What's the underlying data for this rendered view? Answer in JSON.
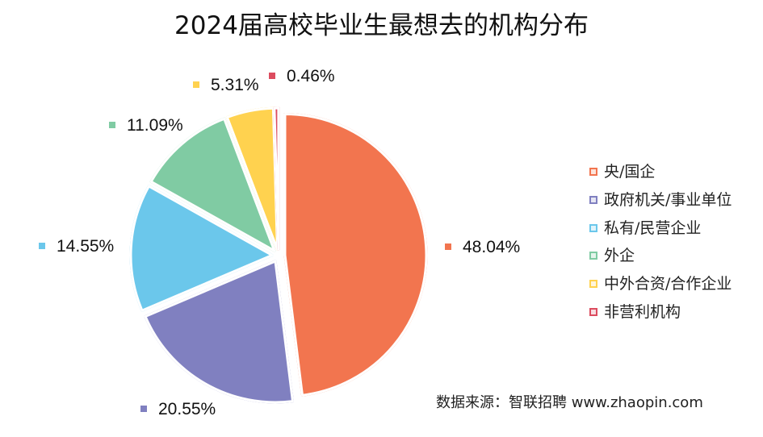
{
  "chart_data": {
    "type": "pie",
    "title": "2024届高校毕业生最想去的机构分布",
    "categories": [
      "央/国企",
      "政府机关/事业单位",
      "私有/民营企业",
      "外企",
      "中外合资/合作企业",
      "非营利机构"
    ],
    "values": [
      48.04,
      20.55,
      14.55,
      11.09,
      5.31,
      0.46
    ],
    "value_labels": [
      "48.04%",
      "20.55%",
      "14.55%",
      "11.09%",
      "5.31%",
      "0.46%"
    ],
    "colors": [
      "#F2754F",
      "#8080C0",
      "#6BC7EB",
      "#80CBA3",
      "#FFD24F",
      "#DC4C5F"
    ],
    "legend_position": "right",
    "start_angle": "12 o'clock, clockwise",
    "exploded": true
  },
  "source_note": "数据来源：智联招聘 www.zhaopin.com"
}
